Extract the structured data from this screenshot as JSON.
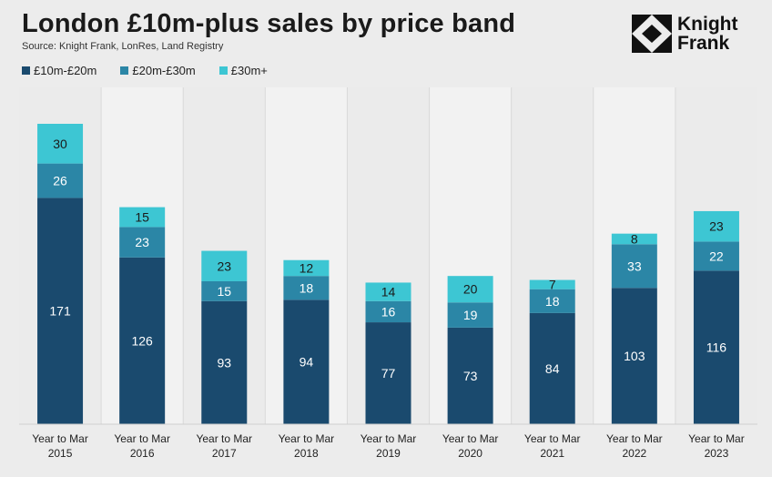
{
  "header": {
    "title": "London £10m-plus sales by price band",
    "source": "Source: Knight Frank, LonRes, Land Registry",
    "logo_line1": "Knight",
    "logo_line2": "Frank"
  },
  "legend": [
    {
      "label": "£10m-£20m",
      "color": "#1a4a6e"
    },
    {
      "label": "£20m-£30m",
      "color": "#2b86a6"
    },
    {
      "label": "£30m+",
      "color": "#3dc6d3"
    }
  ],
  "chart_data": {
    "type": "bar",
    "stacked": true,
    "title": "London £10m-plus sales by price band",
    "categories": [
      [
        "Year to Mar",
        "2015"
      ],
      [
        "Year to Mar",
        "2016"
      ],
      [
        "Year to Mar",
        "2017"
      ],
      [
        "Year to Mar",
        "2018"
      ],
      [
        "Year to Mar",
        "2019"
      ],
      [
        "Year to Mar",
        "2020"
      ],
      [
        "Year to Mar",
        "2021"
      ],
      [
        "Year to Mar",
        "2022"
      ],
      [
        "Year to Mar",
        "2023"
      ]
    ],
    "series": [
      {
        "name": "£10m-£20m",
        "color": "#1a4a6e",
        "values": [
          171,
          126,
          93,
          94,
          77,
          73,
          84,
          103,
          116
        ]
      },
      {
        "name": "£20m-£30m",
        "color": "#2b86a6",
        "values": [
          26,
          23,
          15,
          18,
          16,
          19,
          18,
          33,
          22
        ]
      },
      {
        "name": "£30m+",
        "color": "#3dc6d3",
        "values": [
          30,
          15,
          23,
          12,
          14,
          20,
          7,
          8,
          23
        ]
      }
    ],
    "legend_position": "top-left",
    "grid": false
  }
}
